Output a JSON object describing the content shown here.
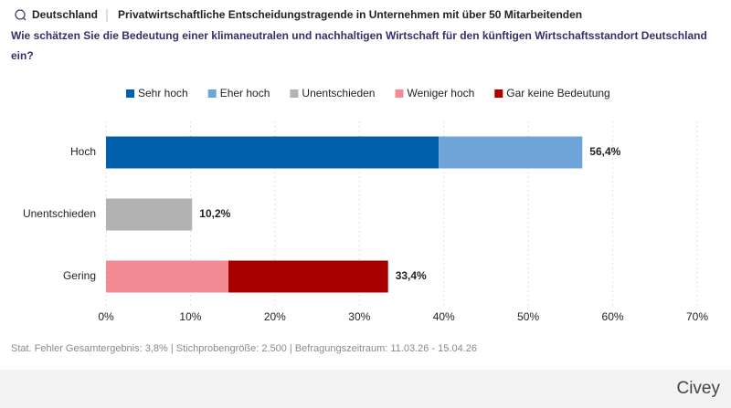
{
  "chart_data": {
    "type": "stacked-bar-horizontal",
    "region": "Deutschland",
    "audience": "Privatwirtschaftliche Entscheidungstragende in Unternehmen mit über 50 Mitarbeitenden",
    "title": "Wie schätzen Sie die Bedeutung einer klimaneutralen und nachhaltigen Wirtschaft für den künftigen Wirtschaftsstandort Deutschland ein?",
    "categories": [
      "Hoch",
      "Unentschieden",
      "Gering"
    ],
    "series": [
      {
        "name": "Sehr hoch",
        "color": "#0060ac",
        "values": [
          39.4,
          null,
          null
        ]
      },
      {
        "name": "Eher hoch",
        "color": "#6fa4d8",
        "values": [
          17.0,
          null,
          null
        ]
      },
      {
        "name": "Unentschieden",
        "color": "#b2b2b2",
        "values": [
          null,
          10.2,
          null
        ]
      },
      {
        "name": "Weniger hoch",
        "color": "#f28b93",
        "values": [
          null,
          null,
          14.5
        ]
      },
      {
        "name": "Gar keine Bedeutung",
        "color": "#a80000",
        "values": [
          null,
          null,
          18.9
        ]
      }
    ],
    "totals": [
      56.4,
      10.2,
      33.4
    ],
    "total_labels": [
      "56,4%",
      "10,2%",
      "33,4%"
    ],
    "xlim": [
      0,
      70
    ],
    "xticks": [
      {
        "value": 0,
        "label": "0%"
      },
      {
        "value": 10,
        "label": "10%"
      },
      {
        "value": 20,
        "label": "20%"
      },
      {
        "value": 30,
        "label": "30%"
      },
      {
        "value": 40,
        "label": "40%"
      },
      {
        "value": 50,
        "label": "50%"
      },
      {
        "value": 60,
        "label": "60%"
      },
      {
        "value": 70,
        "label": "70%"
      }
    ],
    "grid": true,
    "note": "Stat. Fehler Gesamtergebnis: 3,8% | Stichprobengröße: 2.500 | Befragungszeitraum: 11.03.26 - 15.04.26",
    "brand": "Civey"
  }
}
